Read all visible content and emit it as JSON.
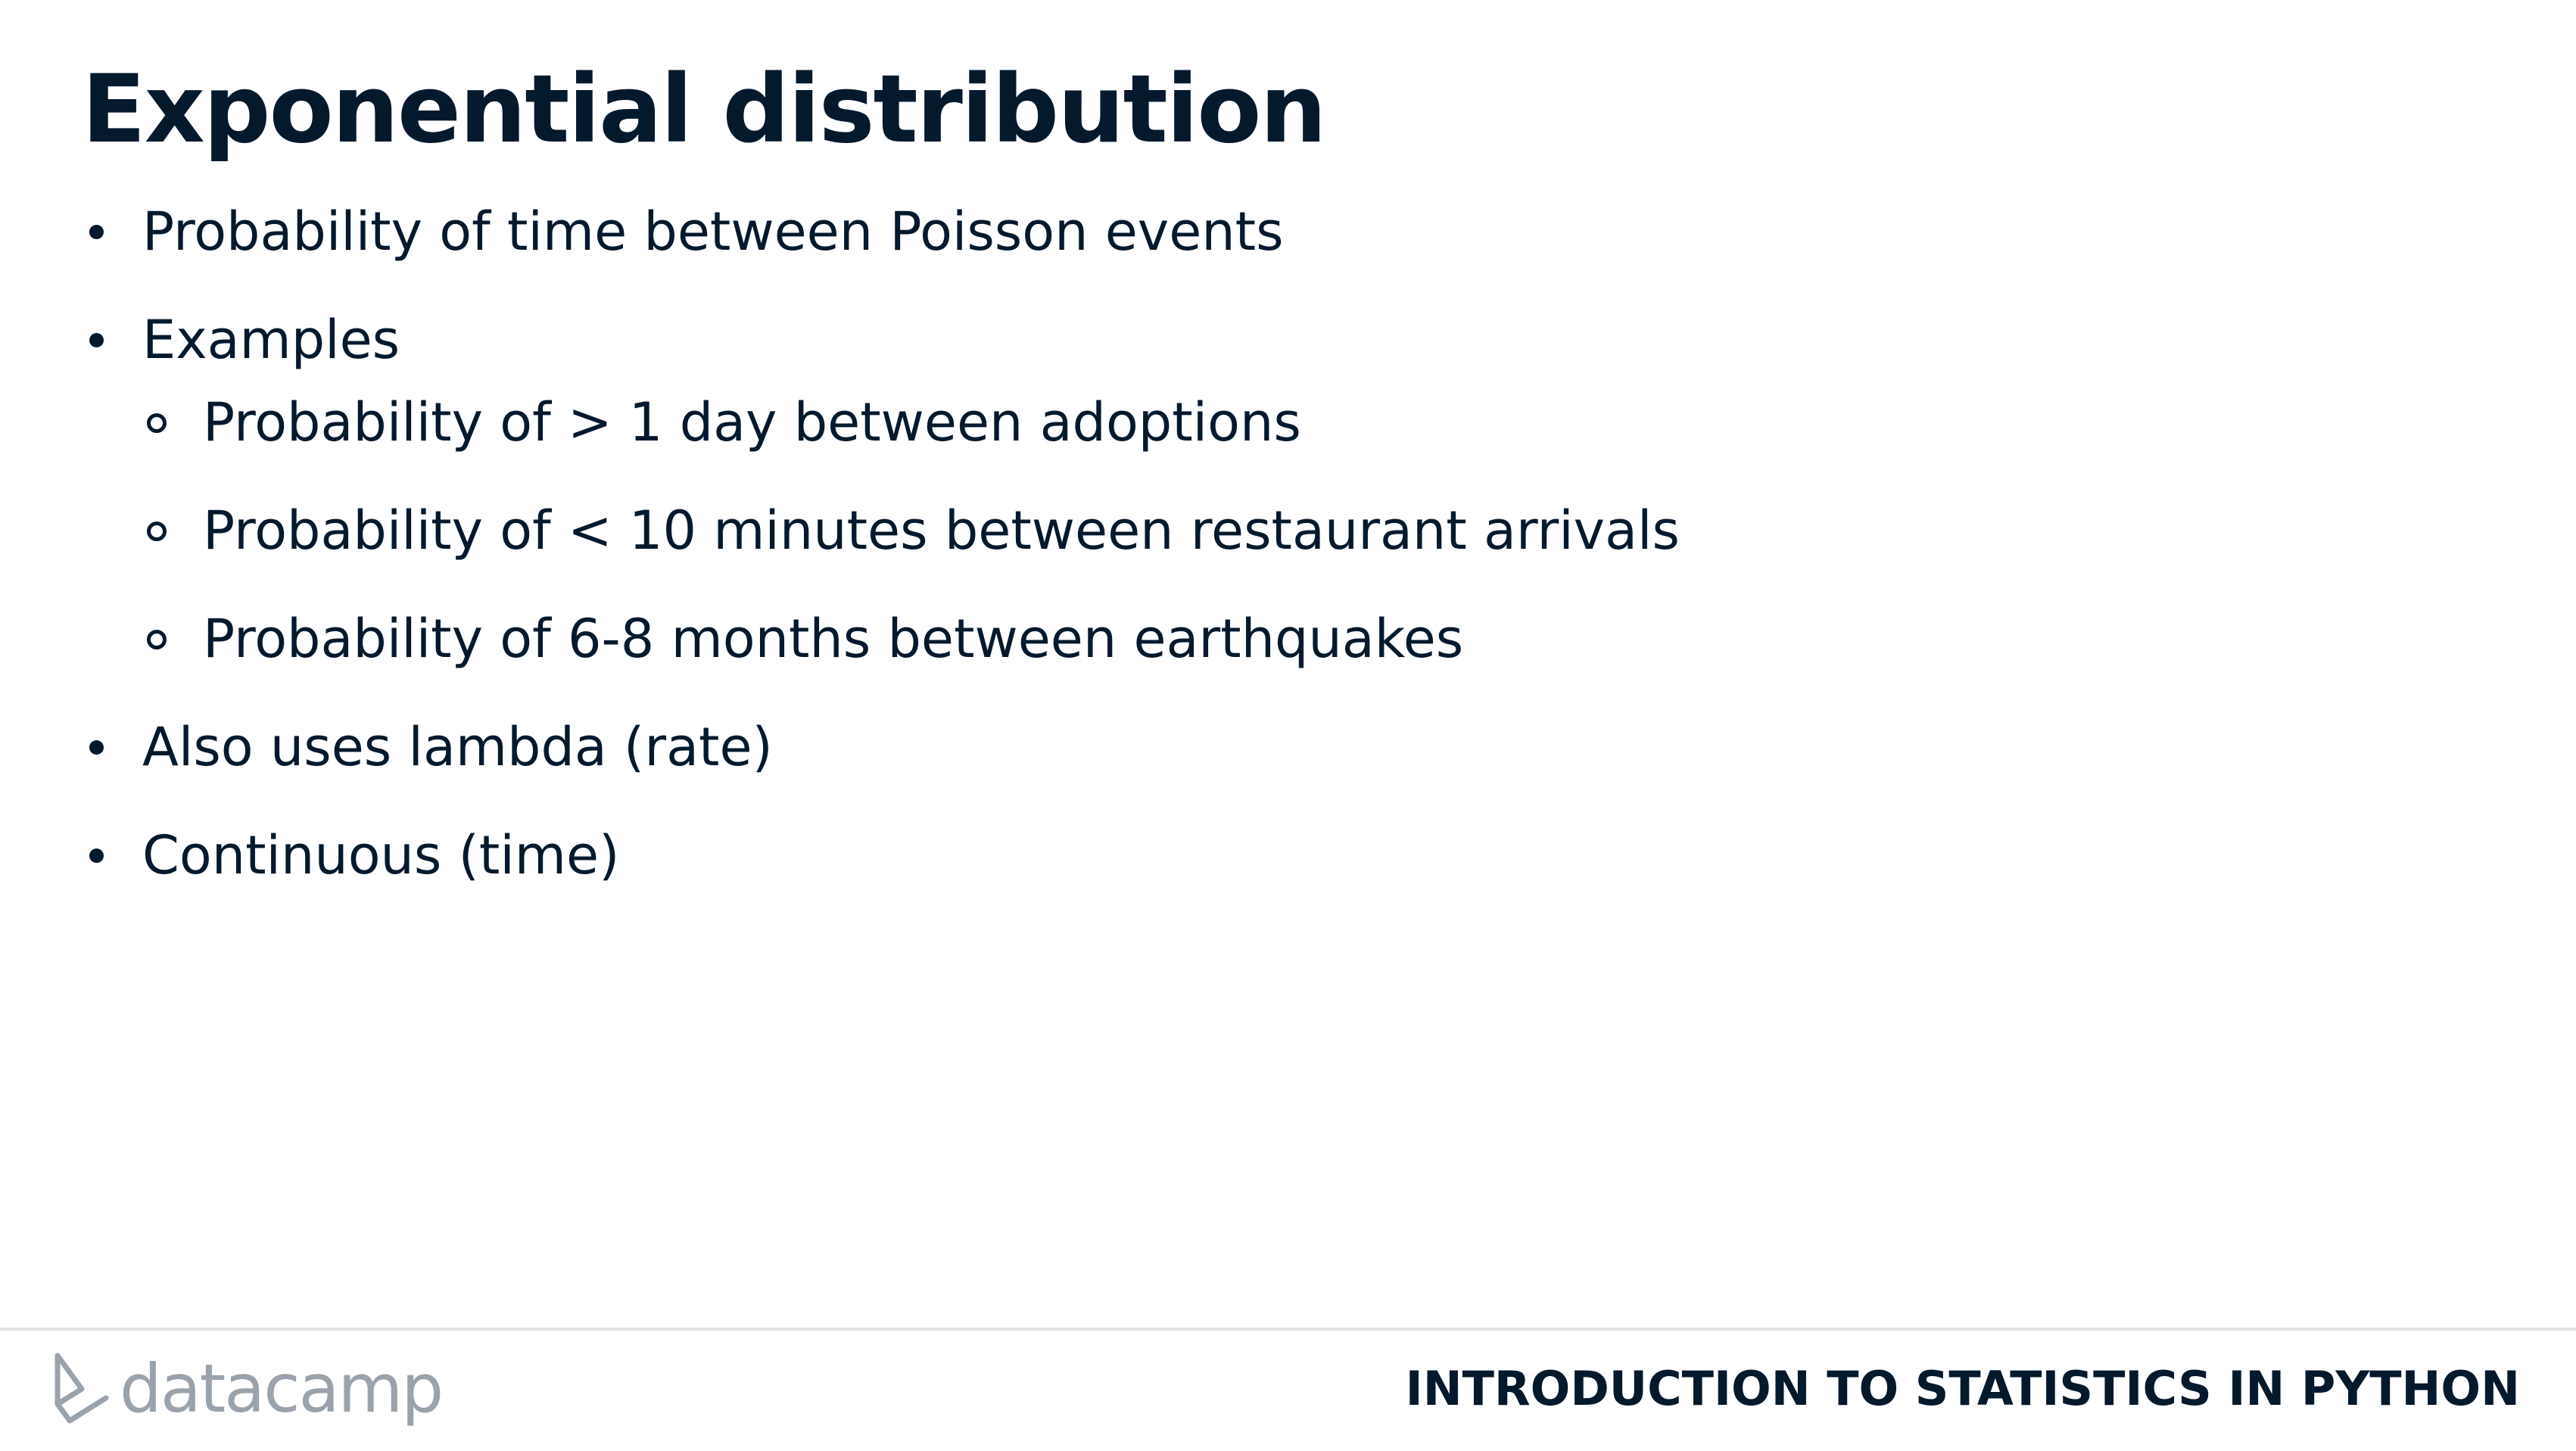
{
  "slide": {
    "title": "Exponential distribution",
    "bullets": [
      {
        "text": "Probability of time between Poisson events"
      },
      {
        "text": "Examples",
        "sub": [
          {
            "text": "Probability of > 1 day between adoptions"
          },
          {
            "text": "Probability of < 10 minutes between restaurant arrivals"
          },
          {
            "text": "Probability of 6-8 months between earthquakes"
          }
        ]
      },
      {
        "text": "Also uses lambda (rate)"
      },
      {
        "text": "Continuous (time)"
      }
    ]
  },
  "footer": {
    "brand": "datacamp",
    "brand_icon": "datacamp-logo-icon",
    "course_title": "INTRODUCTION TO STATISTICS IN PYTHON"
  },
  "colors": {
    "text": "#05192d",
    "logo": "#9aa2ab",
    "rule": "#e3e3e3"
  }
}
